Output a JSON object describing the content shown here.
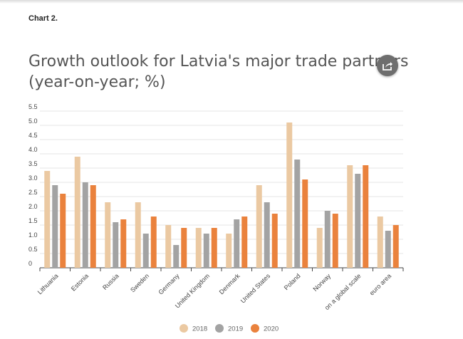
{
  "caption": "Chart 2.",
  "title_line1": "Growth outlook for Latvia's major trade partners",
  "title_line2": "(year-on-year; %)",
  "share_icon": "share-icon",
  "colors": {
    "2018": "#ebc9a2",
    "2019": "#a3a3a3",
    "2020": "#ea823d",
    "grid": "#e6e6e6",
    "axis": "#444444"
  },
  "chart_data": {
    "type": "bar",
    "title": "Growth outlook for Latvia's major trade partners (year-on-year; %)",
    "categories": [
      "Lithuania",
      "Estonia",
      "Russia",
      "Sweden",
      "Germany",
      "United Kingdom",
      "Denmark",
      "United States",
      "Poland",
      "Norway",
      "on a global scale",
      "euro area"
    ],
    "series": [
      {
        "name": "2018",
        "values": [
          3.4,
          3.9,
          2.3,
          2.3,
          1.5,
          1.4,
          1.2,
          2.9,
          5.1,
          1.4,
          3.6,
          1.8
        ]
      },
      {
        "name": "2019",
        "values": [
          2.9,
          3.0,
          1.6,
          1.2,
          0.8,
          1.2,
          1.7,
          2.3,
          3.8,
          2.0,
          3.3,
          1.3
        ]
      },
      {
        "name": "2020",
        "values": [
          2.6,
          2.9,
          1.7,
          1.8,
          1.4,
          1.4,
          1.8,
          1.9,
          3.1,
          1.9,
          3.6,
          1.5
        ]
      }
    ],
    "yticks": [
      "0",
      "0.5",
      "1.0",
      "1.5",
      "2.0",
      "2.5",
      "3.0",
      "3.5",
      "4.0",
      "4.5",
      "5.0",
      "5.5"
    ],
    "ylim": [
      0,
      5.5
    ],
    "grid": true,
    "legend_position": "bottom"
  }
}
